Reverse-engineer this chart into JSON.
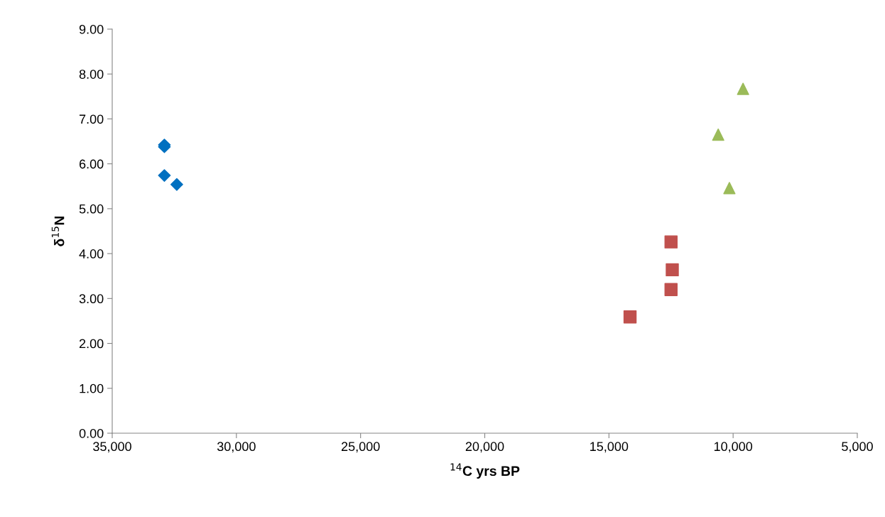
{
  "chart_data": {
    "type": "scatter",
    "xlabel": "$^{14}$C yrs BP",
    "ylabel": "δ$^{15}$N",
    "xlim": [
      35000,
      5000
    ],
    "xticks": [
      {
        "value": 35000,
        "label": "35,000"
      },
      {
        "value": 30000,
        "label": "30,000"
      },
      {
        "value": 25000,
        "label": "25,000"
      },
      {
        "value": 20000,
        "label": "20,000"
      },
      {
        "value": 15000,
        "label": "15,000"
      },
      {
        "value": 10000,
        "label": "10,000"
      },
      {
        "value": 5000,
        "label": "5,000"
      }
    ],
    "ylim": [
      0,
      9
    ],
    "yticks": [
      {
        "value": 0,
        "label": "0.00"
      },
      {
        "value": 1,
        "label": "1.00"
      },
      {
        "value": 2,
        "label": "2.00"
      },
      {
        "value": 3,
        "label": "3.00"
      },
      {
        "value": 4,
        "label": "4.00"
      },
      {
        "value": 5,
        "label": "5.00"
      },
      {
        "value": 6,
        "label": "6.00"
      },
      {
        "value": 7,
        "label": "7.00"
      },
      {
        "value": 8,
        "label": "8.00"
      },
      {
        "value": 9,
        "label": "9.00"
      }
    ],
    "series": [
      {
        "color": "#0070c0",
        "marker": "diamond",
        "x": [
          32900,
          32900,
          32900,
          32400
        ],
        "values": [
          6.42,
          6.38,
          5.74,
          5.54
        ]
      },
      {
        "color": "#c0504d",
        "marker": "square",
        "x": [
          12500,
          12450,
          12500,
          14150
        ],
        "values": [
          4.26,
          3.64,
          3.2,
          2.59
        ]
      },
      {
        "color": "#9bbb59",
        "marker": "triangle",
        "x": [
          9600,
          10600,
          10150
        ],
        "values": [
          7.67,
          6.65,
          5.46
        ]
      }
    ]
  }
}
